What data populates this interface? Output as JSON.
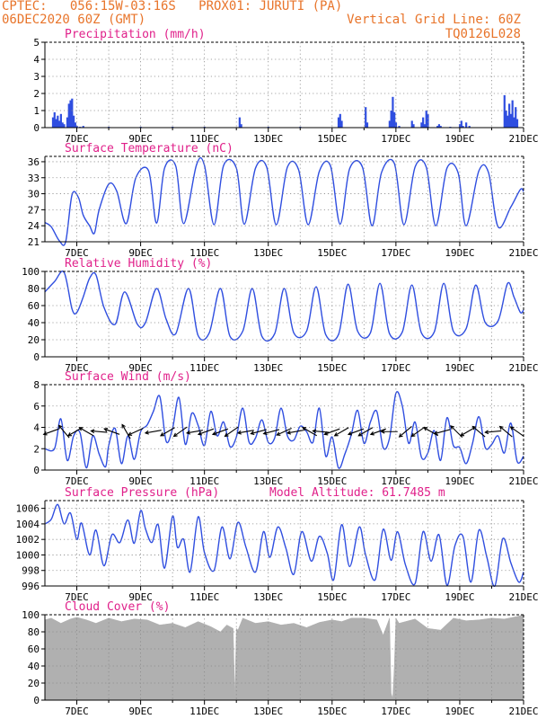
{
  "header": {
    "left_line1": "CPTEC:   056:15W-03:16S   PROX01: JURUTI (PA)",
    "left_line2": "06DEC2020 60Z (GMT)",
    "right_line1": "Vertical Grid Line: 60Z",
    "right_line2": "TQ0126L028"
  },
  "colors": {
    "header": "#e8742a",
    "panel_title": "#e0208a",
    "line": "#2f4ee0",
    "cloud": "#b0b0b0",
    "grid": "#888888"
  },
  "x_axis": {
    "start_day": 6.0,
    "end_day": 21.0,
    "tick_labels": [
      "7DEC",
      "9DEC",
      "11DEC",
      "13DEC",
      "15DEC",
      "17DEC",
      "19DEC",
      "21DEC"
    ]
  },
  "chart_data": [
    {
      "type": "bar",
      "id": "precip",
      "title": "Precipitation (mm/h)",
      "ylim": [
        0,
        5
      ],
      "yticks": [
        0,
        1,
        2,
        3,
        4,
        5
      ],
      "x": [
        6.25,
        6.3,
        6.35,
        6.4,
        6.45,
        6.5,
        6.55,
        6.6,
        6.7,
        6.75,
        6.8,
        6.85,
        6.9,
        6.95,
        7.0,
        7.1,
        7.2,
        8.0,
        9.0,
        10.0,
        11.0,
        12.1,
        12.15,
        13.0,
        14.0,
        15.2,
        15.25,
        15.3,
        16.05,
        16.1,
        16.8,
        16.85,
        16.9,
        16.95,
        17.0,
        17.1,
        17.5,
        17.55,
        17.8,
        17.85,
        17.9,
        17.95,
        18.0,
        18.3,
        18.35,
        18.4,
        18.7,
        19.0,
        19.05,
        19.1,
        19.2,
        19.3,
        20.4,
        20.45,
        20.5,
        20.55,
        20.6,
        20.65,
        20.7,
        20.75,
        20.8
      ],
      "values": [
        0.6,
        0.9,
        0.5,
        0.7,
        0.4,
        0.8,
        0.3,
        0.2,
        0.6,
        1.4,
        1.6,
        1.7,
        0.7,
        0.3,
        0.1,
        0.05,
        0.1,
        0.05,
        0.05,
        0.05,
        0.05,
        0.6,
        0.2,
        0.05,
        0.05,
        0.6,
        0.8,
        0.4,
        1.2,
        0.3,
        0.4,
        1.0,
        1.8,
        0.9,
        0.3,
        0.1,
        0.4,
        0.2,
        0.3,
        0.6,
        0.2,
        1.0,
        0.8,
        0.1,
        0.2,
        0.1,
        0.05,
        0.2,
        0.4,
        0.1,
        0.3,
        0.1,
        1.9,
        1.0,
        0.7,
        1.4,
        0.8,
        1.6,
        0.6,
        1.2,
        0.5
      ]
    },
    {
      "type": "line",
      "id": "temp",
      "title": "Surface Temperature (nC)",
      "ylim": [
        21,
        37
      ],
      "yticks": [
        21,
        24,
        27,
        30,
        33,
        36
      ],
      "x": [
        6.0,
        6.2,
        6.45,
        6.65,
        6.85,
        7.05,
        7.2,
        7.4,
        7.55,
        7.7,
        8.0,
        8.25,
        8.55,
        8.85,
        9.25,
        9.5,
        9.75,
        10.1,
        10.35,
        10.75,
        11.0,
        11.3,
        11.6,
        12.0,
        12.25,
        12.6,
        12.95,
        13.25,
        13.6,
        13.95,
        14.25,
        14.6,
        14.95,
        15.25,
        15.55,
        15.95,
        16.25,
        16.55,
        16.95,
        17.25,
        17.6,
        17.95,
        18.25,
        18.6,
        18.95,
        19.2,
        19.6,
        19.9,
        20.2,
        20.6,
        20.9,
        21.0
      ],
      "values": [
        24.6,
        23.8,
        21.2,
        21.0,
        29.8,
        29.3,
        26.0,
        24.0,
        22.6,
        27.0,
        31.8,
        30.5,
        24.4,
        33.0,
        34.3,
        24.5,
        34.8,
        35.2,
        24.4,
        35.4,
        35.3,
        24.2,
        35.3,
        34.8,
        24.3,
        34.8,
        35.0,
        24.2,
        35.0,
        34.5,
        24.2,
        34.2,
        35.2,
        24.3,
        34.7,
        35.0,
        24.0,
        34.0,
        35.7,
        24.2,
        35.0,
        35.0,
        24.0,
        34.8,
        33.9,
        24.0,
        34.3,
        34.0,
        23.8,
        27.5,
        30.8,
        30.4
      ]
    },
    {
      "type": "line",
      "id": "rh",
      "title": "Relative Humidity (%)",
      "ylim": [
        0,
        100
      ],
      "yticks": [
        0,
        20,
        40,
        60,
        80,
        100
      ],
      "x": [
        6.0,
        6.3,
        6.6,
        6.85,
        7.0,
        7.2,
        7.4,
        7.6,
        7.85,
        8.2,
        8.5,
        8.9,
        9.15,
        9.5,
        9.8,
        10.1,
        10.5,
        10.8,
        11.15,
        11.5,
        11.8,
        12.2,
        12.5,
        12.8,
        13.2,
        13.5,
        13.8,
        14.2,
        14.5,
        14.8,
        15.2,
        15.5,
        15.8,
        16.2,
        16.5,
        16.8,
        17.2,
        17.5,
        17.8,
        18.2,
        18.5,
        18.8,
        19.2,
        19.5,
        19.8,
        20.2,
        20.5,
        20.7,
        20.9,
        21.0
      ],
      "values": [
        76,
        88,
        99,
        56,
        52,
        70,
        92,
        96,
        58,
        38,
        76,
        38,
        40,
        80,
        44,
        27,
        80,
        25,
        28,
        80,
        24,
        30,
        80,
        24,
        27,
        80,
        28,
        30,
        82,
        26,
        26,
        85,
        30,
        28,
        86,
        27,
        29,
        84,
        28,
        29,
        86,
        30,
        33,
        84,
        40,
        42,
        86,
        70,
        52,
        55
      ]
    },
    {
      "type": "line",
      "id": "wind",
      "title": "Surface Wind (m/s)",
      "ylim": [
        0,
        8
      ],
      "yticks": [
        0,
        2,
        4,
        6,
        8
      ],
      "x": [
        6.0,
        6.3,
        6.5,
        6.7,
        6.9,
        7.1,
        7.3,
        7.5,
        7.7,
        7.9,
        8.0,
        8.2,
        8.4,
        8.6,
        8.8,
        9.0,
        9.2,
        9.4,
        9.6,
        9.8,
        10.0,
        10.2,
        10.4,
        10.6,
        10.8,
        11.0,
        11.2,
        11.4,
        11.6,
        11.8,
        12.0,
        12.2,
        12.4,
        12.6,
        12.8,
        13.0,
        13.2,
        13.4,
        13.6,
        13.8,
        14.0,
        14.2,
        14.4,
        14.6,
        14.8,
        15.0,
        15.2,
        15.4,
        15.6,
        15.8,
        16.0,
        16.2,
        16.4,
        16.6,
        16.8,
        17.0,
        17.2,
        17.4,
        17.6,
        17.8,
        18.0,
        18.2,
        18.4,
        18.6,
        18.8,
        19.0,
        19.2,
        19.4,
        19.6,
        19.8,
        20.0,
        20.2,
        20.4,
        20.6,
        20.8,
        21.0
      ],
      "values": [
        2.0,
        2.0,
        4.8,
        0.9,
        3.2,
        3.5,
        0.2,
        3.2,
        1.5,
        0.3,
        2.3,
        3.9,
        0.6,
        3.2,
        1.0,
        3.6,
        4.2,
        5.5,
        6.9,
        2.7,
        3.9,
        6.8,
        2.4,
        5.3,
        4.2,
        2.3,
        5.5,
        3.2,
        4.5,
        2.2,
        3.1,
        5.8,
        2.6,
        3.0,
        4.7,
        2.6,
        3.0,
        5.8,
        3.2,
        2.8,
        4.1,
        3.6,
        2.6,
        5.8,
        1.3,
        3.1,
        0.2,
        1.5,
        3.3,
        5.6,
        2.5,
        4.5,
        5.5,
        2.1,
        3.0,
        7.2,
        6.0,
        2.5,
        4.5,
        1.2,
        1.6,
        3.7,
        0.9,
        4.9,
        2.3,
        2.1,
        0.6,
        2.5,
        5.0,
        2.1,
        2.4,
        3.2,
        1.6,
        4.4,
        0.8,
        1.3
      ]
    },
    {
      "type": "line",
      "id": "pres",
      "title": "Surface Pressure (hPa)",
      "annotation": "Model Altitude: 61.7485 m",
      "ylim": [
        996,
        1007
      ],
      "yticks": [
        996,
        998,
        1000,
        1002,
        1004,
        1006
      ],
      "x": [
        6.0,
        6.2,
        6.4,
        6.6,
        6.8,
        7.0,
        7.15,
        7.4,
        7.6,
        7.85,
        8.1,
        8.35,
        8.6,
        8.8,
        9.0,
        9.15,
        9.35,
        9.55,
        9.75,
        10.0,
        10.15,
        10.35,
        10.55,
        10.8,
        11.0,
        11.3,
        11.55,
        11.8,
        12.05,
        12.3,
        12.6,
        12.85,
        13.05,
        13.3,
        13.55,
        13.8,
        14.05,
        14.35,
        14.6,
        14.85,
        15.05,
        15.3,
        15.55,
        15.85,
        16.05,
        16.35,
        16.6,
        16.85,
        17.05,
        17.3,
        17.6,
        17.85,
        18.1,
        18.35,
        18.6,
        18.85,
        19.1,
        19.35,
        19.6,
        19.85,
        20.1,
        20.35,
        20.6,
        20.85,
        21.0
      ],
      "values": [
        1004.0,
        1004.6,
        1006.5,
        1004.0,
        1005.4,
        1002.0,
        1004.1,
        1000.0,
        1003.2,
        998.6,
        1002.6,
        1001.6,
        1004.5,
        1001.5,
        1005.7,
        1003.4,
        1001.6,
        1003.9,
        998.3,
        1005.0,
        1001.0,
        1002.0,
        997.8,
        1004.9,
        1000.3,
        998.0,
        1003.6,
        999.5,
        1004.2,
        1001.0,
        997.8,
        1003.0,
        999.7,
        1003.6,
        1000.9,
        997.5,
        1003.0,
        999.2,
        1002.4,
        1000.2,
        996.8,
        1003.9,
        998.5,
        1003.6,
        1000.0,
        996.8,
        1003.3,
        999.3,
        1003.0,
        998.7,
        996.3,
        1003.0,
        999.2,
        1002.6,
        996.1,
        1001.2,
        1002.4,
        996.5,
        1003.2,
        999.7,
        996.0,
        1002.1,
        999.0,
        996.5,
        997.8
      ]
    },
    {
      "type": "area",
      "id": "cloud",
      "title": "Cloud Cover (%)",
      "ylim": [
        0,
        100
      ],
      "yticks": [
        0,
        20,
        40,
        60,
        80,
        100
      ],
      "x": [
        6.0,
        6.2,
        6.5,
        6.8,
        7.0,
        7.3,
        7.6,
        8.0,
        8.4,
        8.8,
        9.2,
        9.6,
        10.0,
        10.4,
        10.8,
        11.2,
        11.5,
        11.7,
        11.9,
        11.95,
        12.0,
        12.05,
        12.2,
        12.6,
        13.0,
        13.4,
        13.8,
        14.2,
        14.6,
        15.0,
        15.3,
        15.6,
        16.0,
        16.4,
        16.6,
        16.8,
        16.85,
        16.9,
        16.95,
        17.0,
        17.1,
        17.3,
        17.6,
        18.0,
        18.4,
        18.8,
        19.2,
        19.6,
        20.0,
        20.4,
        20.8,
        21.0
      ],
      "values": [
        94,
        96,
        90,
        95,
        97,
        94,
        90,
        96,
        92,
        95,
        94,
        88,
        90,
        85,
        92,
        86,
        80,
        88,
        84,
        2,
        84,
        82,
        96,
        90,
        92,
        88,
        90,
        85,
        91,
        94,
        92,
        96,
        96,
        94,
        76,
        96,
        8,
        2,
        40,
        96,
        90,
        92,
        95,
        84,
        82,
        96,
        93,
        94,
        96,
        95,
        98,
        100
      ]
    }
  ],
  "wind_arrows": [
    {
      "day": 6.2,
      "angle": 200
    },
    {
      "day": 6.6,
      "angle": 130
    },
    {
      "day": 6.95,
      "angle": 210
    },
    {
      "day": 7.3,
      "angle": 150
    },
    {
      "day": 7.7,
      "angle": 175
    },
    {
      "day": 8.1,
      "angle": 160
    },
    {
      "day": 8.55,
      "angle": 120
    },
    {
      "day": 8.85,
      "angle": 205
    },
    {
      "day": 9.4,
      "angle": 190
    },
    {
      "day": 9.85,
      "angle": 210
    },
    {
      "day": 10.25,
      "angle": 215
    },
    {
      "day": 10.7,
      "angle": 190
    },
    {
      "day": 11.05,
      "angle": 200
    },
    {
      "day": 11.5,
      "angle": 200
    },
    {
      "day": 11.85,
      "angle": 215
    },
    {
      "day": 12.3,
      "angle": 190
    },
    {
      "day": 12.7,
      "angle": 195
    },
    {
      "day": 13.1,
      "angle": 195
    },
    {
      "day": 13.5,
      "angle": 205
    },
    {
      "day": 13.85,
      "angle": 190
    },
    {
      "day": 14.3,
      "angle": 150
    },
    {
      "day": 14.65,
      "angle": 175
    },
    {
      "day": 15.0,
      "angle": 200
    },
    {
      "day": 15.3,
      "angle": 210
    },
    {
      "day": 15.75,
      "angle": 200
    },
    {
      "day": 16.05,
      "angle": 210
    },
    {
      "day": 16.45,
      "angle": 200
    },
    {
      "day": 16.8,
      "angle": 180
    },
    {
      "day": 17.3,
      "angle": 220
    },
    {
      "day": 17.7,
      "angle": 215
    },
    {
      "day": 18.1,
      "angle": 150
    },
    {
      "day": 18.45,
      "angle": 195
    },
    {
      "day": 18.9,
      "angle": 135
    },
    {
      "day": 19.25,
      "angle": 210
    },
    {
      "day": 19.6,
      "angle": 140
    },
    {
      "day": 20.05,
      "angle": 185
    },
    {
      "day": 20.45,
      "angle": 140
    },
    {
      "day": 20.8,
      "angle": 145
    }
  ]
}
